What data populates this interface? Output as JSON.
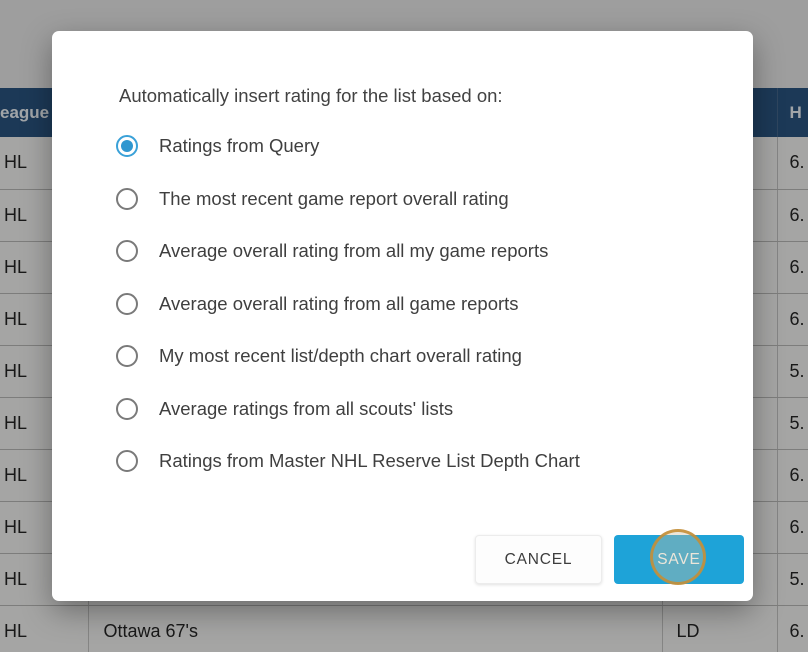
{
  "dialog": {
    "title": "Automatically insert rating for the list based on:",
    "options": [
      {
        "label": "Ratings from Query",
        "selected": true
      },
      {
        "label": "The most recent game report overall rating",
        "selected": false
      },
      {
        "label": "Average overall rating from all my game reports",
        "selected": false
      },
      {
        "label": "Average overall rating from all game reports",
        "selected": false
      },
      {
        "label": "My most recent list/depth chart overall rating",
        "selected": false
      },
      {
        "label": "Average ratings from all scouts' lists",
        "selected": false
      },
      {
        "label": "Ratings from Master NHL Reserve List Depth Chart",
        "selected": false
      }
    ],
    "cancel_label": "CANCEL",
    "save_label": "SAVE"
  },
  "background_table": {
    "headers": {
      "league": "eague",
      "team": "",
      "pos": "",
      "rating": "H"
    },
    "rows": [
      {
        "league": "HL",
        "team": "",
        "pos": "",
        "rating": "6."
      },
      {
        "league": "HL",
        "team": "",
        "pos": "",
        "rating": "6."
      },
      {
        "league": "HL",
        "team": "",
        "pos": "",
        "rating": "6."
      },
      {
        "league": "HL",
        "team": "",
        "pos": "",
        "rating": "6."
      },
      {
        "league": "HL",
        "team": "",
        "pos": "",
        "rating": "5."
      },
      {
        "league": "HL",
        "team": "",
        "pos": "",
        "rating": "5."
      },
      {
        "league": "HL",
        "team": "",
        "pos": "",
        "rating": "6."
      },
      {
        "league": "HL",
        "team": "",
        "pos": "",
        "rating": "6."
      },
      {
        "league": "HL",
        "team": "",
        "pos": "",
        "rating": "5."
      },
      {
        "league": "HL",
        "team": "Ottawa 67's",
        "pos": "LD",
        "rating": "6."
      }
    ]
  },
  "colors": {
    "accent_blue": "#1ea3d8",
    "radio_selected_blue": "#2f97d0",
    "table_header_navy": "#2a5480",
    "click_indicator_orange": "#c48e36",
    "overlay": "rgba(0,0,0,0.32)"
  }
}
